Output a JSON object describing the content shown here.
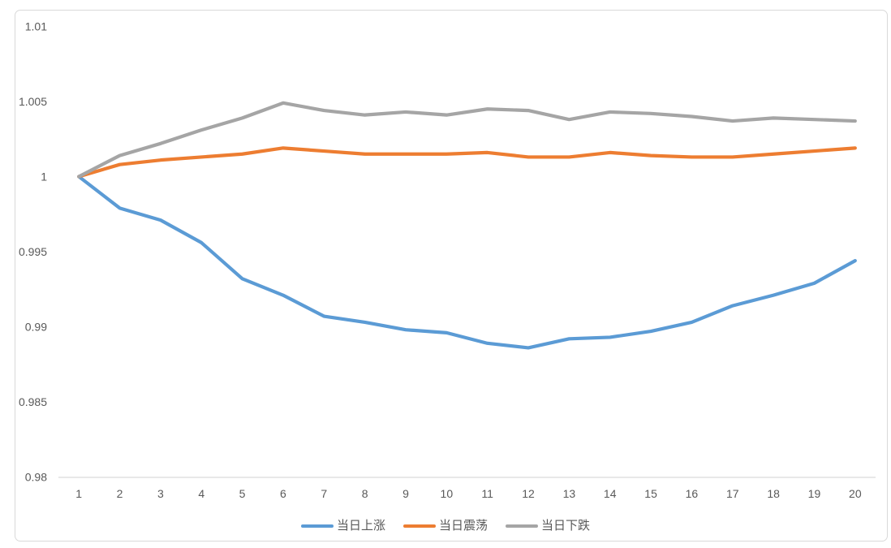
{
  "chart_data": {
    "type": "line",
    "title": "",
    "xlabel": "",
    "ylabel": "",
    "grid": false,
    "legend_position": "bottom-center",
    "background_color": "#ffffff",
    "frame_border_color": "#d9d9d9",
    "axis_line_color": "#d9d9d9",
    "tick_label_color": "#595959",
    "x": [
      1,
      2,
      3,
      4,
      5,
      6,
      7,
      8,
      9,
      10,
      11,
      12,
      13,
      14,
      15,
      16,
      17,
      18,
      19,
      20
    ],
    "ylim": [
      0.98,
      1.01
    ],
    "y_ticks": [
      0.98,
      0.985,
      0.99,
      0.995,
      1,
      1.005,
      1.01
    ],
    "y_tick_labels": [
      "0.98",
      "0.985",
      "0.99",
      "0.995",
      "1",
      "1.005",
      "1.01"
    ],
    "series": [
      {
        "id": "up",
        "name": "当日上涨",
        "color": "#5b9bd5",
        "values": [
          1.0,
          0.9979,
          0.9971,
          0.9956,
          0.9932,
          0.9921,
          0.9907,
          0.9903,
          0.9898,
          0.9896,
          0.9889,
          0.9886,
          0.9892,
          0.9893,
          0.9897,
          0.9903,
          0.9914,
          0.9921,
          0.9929,
          0.9944
        ]
      },
      {
        "id": "oscillate",
        "name": "当日震荡",
        "color": "#ed7d31",
        "values": [
          1.0,
          1.0008,
          1.0011,
          1.0013,
          1.0015,
          1.0019,
          1.0017,
          1.0015,
          1.0015,
          1.0015,
          1.0016,
          1.0013,
          1.0013,
          1.0016,
          1.0014,
          1.0013,
          1.0013,
          1.0015,
          1.0017,
          1.0019
        ]
      },
      {
        "id": "down",
        "name": "当日下跌",
        "color": "#a5a5a5",
        "values": [
          1.0,
          1.0014,
          1.0022,
          1.0031,
          1.0039,
          1.0049,
          1.0044,
          1.0041,
          1.0043,
          1.0041,
          1.0045,
          1.0044,
          1.0038,
          1.0043,
          1.0042,
          1.004,
          1.0037,
          1.0039,
          1.0038,
          1.0037
        ]
      }
    ]
  }
}
